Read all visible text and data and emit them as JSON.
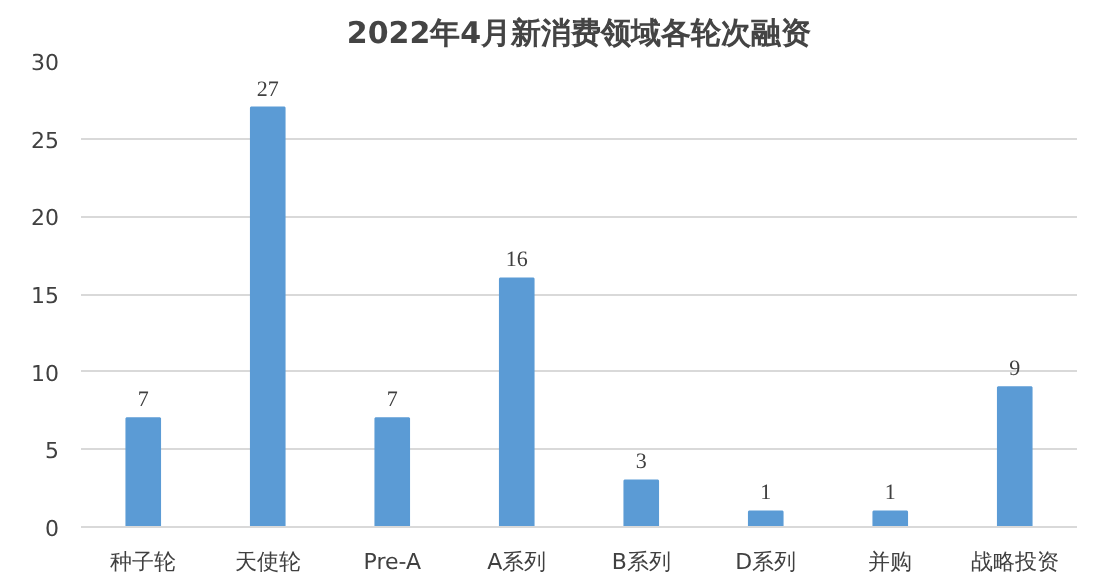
{
  "chart_data": {
    "type": "bar",
    "title": "2022年4月新消费领域各轮次融资",
    "categories": [
      "种子轮",
      "天使轮",
      "Pre-A",
      "A系列",
      "B系列",
      "D系列",
      "并购",
      "战略投资"
    ],
    "values": [
      7,
      27,
      7,
      16,
      3,
      1,
      1,
      9
    ],
    "color": "#5b9bd5",
    "ylim": [
      0,
      30
    ],
    "yticks": [
      0,
      5,
      10,
      15,
      20,
      25,
      30
    ],
    "grid": "y",
    "data_labels": true
  }
}
